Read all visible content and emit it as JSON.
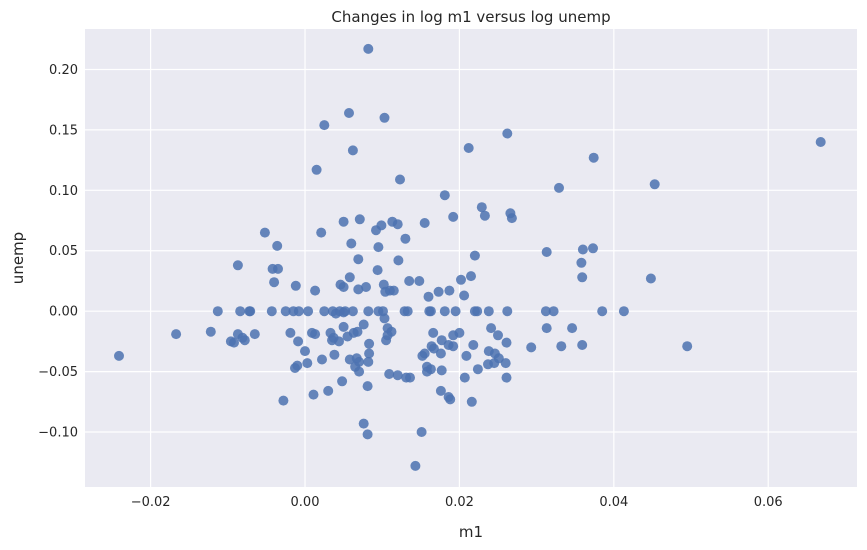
{
  "chart_data": {
    "type": "scatter",
    "title": "Changes in log m1 versus log unemp",
    "xlabel": "m1",
    "ylabel": "unemp",
    "xlim": [
      -0.0285,
      0.0715
    ],
    "ylim": [
      -0.1455,
      0.2335
    ],
    "grid": true,
    "background": "#eaeaf2",
    "point_color": "#4c72b0",
    "xticks": [
      -0.02,
      0.0,
      0.02,
      0.04,
      0.06
    ],
    "xtick_labels": [
      "−0.02",
      "0.00",
      "0.02",
      "0.04",
      "0.06"
    ],
    "yticks": [
      -0.1,
      -0.05,
      0.0,
      0.05,
      0.1,
      0.15,
      0.2
    ],
    "ytick_labels": [
      "−0.10",
      "−0.05",
      "0.00",
      "0.05",
      "0.10",
      "0.15",
      "0.20"
    ],
    "points": [
      [
        0.0082,
        0.217
      ],
      [
        0.0057,
        0.164
      ],
      [
        0.0103,
        0.16
      ],
      [
        0.0025,
        0.154
      ],
      [
        0.0262,
        0.147
      ],
      [
        0.0668,
        0.14
      ],
      [
        0.0212,
        0.135
      ],
      [
        0.0062,
        0.133
      ],
      [
        0.0374,
        0.127
      ],
      [
        0.0015,
        0.117
      ],
      [
        0.0123,
        0.109
      ],
      [
        0.0453,
        0.105
      ],
      [
        0.0329,
        0.102
      ],
      [
        0.0181,
        0.096
      ],
      [
        0.0229,
        0.086
      ],
      [
        0.0266,
        0.081
      ],
      [
        0.0233,
        0.079
      ],
      [
        0.0268,
        0.077
      ],
      [
        0.0192,
        0.078
      ],
      [
        0.0071,
        0.076
      ],
      [
        0.0113,
        0.074
      ],
      [
        0.005,
        0.074
      ],
      [
        0.0155,
        0.073
      ],
      [
        0.012,
        0.072
      ],
      [
        0.0099,
        0.071
      ],
      [
        0.0092,
        0.067
      ],
      [
        -0.0052,
        0.065
      ],
      [
        0.0021,
        0.065
      ],
      [
        0.013,
        0.06
      ],
      [
        0.006,
        0.056
      ],
      [
        -0.0036,
        0.054
      ],
      [
        0.0095,
        0.053
      ],
      [
        0.0373,
        0.052
      ],
      [
        0.036,
        0.051
      ],
      [
        0.0313,
        0.049
      ],
      [
        0.022,
        0.046
      ],
      [
        0.0069,
        0.043
      ],
      [
        0.0121,
        0.042
      ],
      [
        0.0358,
        0.04
      ],
      [
        -0.0087,
        0.038
      ],
      [
        -0.0042,
        0.035
      ],
      [
        -0.0035,
        0.035
      ],
      [
        0.0094,
        0.034
      ],
      [
        0.0215,
        0.029
      ],
      [
        0.0058,
        0.028
      ],
      [
        0.0359,
        0.028
      ],
      [
        0.0448,
        0.027
      ],
      [
        0.0135,
        0.025
      ],
      [
        0.0148,
        0.025
      ],
      [
        -0.004,
        0.024
      ],
      [
        0.0202,
        0.026
      ],
      [
        0.0046,
        0.022
      ],
      [
        0.0102,
        0.022
      ],
      [
        -0.0012,
        0.021
      ],
      [
        0.005,
        0.02
      ],
      [
        0.0079,
        0.02
      ],
      [
        0.0187,
        0.017
      ],
      [
        0.011,
        0.017
      ],
      [
        0.0104,
        0.016
      ],
      [
        0.0173,
        0.016
      ],
      [
        0.0069,
        0.018
      ],
      [
        0.0013,
        0.017
      ],
      [
        0.0115,
        0.017
      ],
      [
        0.0206,
        0.013
      ],
      [
        0.016,
        0.012
      ],
      [
        -0.0113,
        0.0
      ],
      [
        -0.0084,
        0.0
      ],
      [
        -0.0072,
        0.0
      ],
      [
        -0.0071,
        0.0
      ],
      [
        -0.0043,
        0.0
      ],
      [
        -0.0025,
        0.0
      ],
      [
        -0.0015,
        0.0
      ],
      [
        -0.0008,
        0.0
      ],
      [
        0.0004,
        0.0
      ],
      [
        0.0025,
        0.0
      ],
      [
        0.0036,
        0.0
      ],
      [
        0.0045,
        0.0
      ],
      [
        0.0052,
        0.0
      ],
      [
        0.0062,
        0.0
      ],
      [
        0.0082,
        0.0
      ],
      [
        0.0095,
        0.0
      ],
      [
        0.0101,
        0.0
      ],
      [
        0.0129,
        0.0
      ],
      [
        0.0133,
        0.0
      ],
      [
        0.0161,
        0.0
      ],
      [
        0.0163,
        0.0
      ],
      [
        0.0181,
        0.0
      ],
      [
        0.0195,
        0.0
      ],
      [
        0.022,
        0.0
      ],
      [
        0.0223,
        0.0
      ],
      [
        0.0238,
        0.0
      ],
      [
        0.0262,
        0.0
      ],
      [
        0.0312,
        0.0
      ],
      [
        0.0322,
        0.0
      ],
      [
        0.0385,
        0.0
      ],
      [
        0.0413,
        0.0
      ],
      [
        0.004,
        -0.002
      ],
      [
        0.005,
        -0.001
      ],
      [
        0.0103,
        -0.006
      ],
      [
        0.0076,
        -0.011
      ],
      [
        0.005,
        -0.013
      ],
      [
        0.0241,
        -0.014
      ],
      [
        0.0313,
        -0.014
      ],
      [
        0.0346,
        -0.014
      ],
      [
        0.0107,
        -0.014
      ],
      [
        -0.0167,
        -0.019
      ],
      [
        -0.0122,
        -0.017
      ],
      [
        -0.0019,
        -0.018
      ],
      [
        0.0009,
        -0.018
      ],
      [
        0.0013,
        -0.019
      ],
      [
        0.0033,
        -0.018
      ],
      [
        0.0063,
        -0.018
      ],
      [
        0.0068,
        -0.017
      ],
      [
        0.0112,
        -0.017
      ],
      [
        0.0166,
        -0.018
      ],
      [
        0.02,
        -0.018
      ],
      [
        -0.0087,
        -0.019
      ],
      [
        -0.0065,
        -0.019
      ],
      [
        -0.0081,
        -0.022
      ],
      [
        0.0037,
        -0.022
      ],
      [
        0.0055,
        -0.021
      ],
      [
        0.0107,
        -0.02
      ],
      [
        0.0192,
        -0.02
      ],
      [
        0.025,
        -0.02
      ],
      [
        -0.0096,
        -0.025
      ],
      [
        -0.0078,
        -0.024
      ],
      [
        -0.0092,
        -0.026
      ],
      [
        0.0035,
        -0.024
      ],
      [
        0.0044,
        -0.025
      ],
      [
        -0.0009,
        -0.025
      ],
      [
        0.0105,
        -0.024
      ],
      [
        0.0177,
        -0.024
      ],
      [
        0.0083,
        -0.027
      ],
      [
        0.0186,
        -0.028
      ],
      [
        0.0218,
        -0.028
      ],
      [
        0.0261,
        -0.026
      ],
      [
        0.0164,
        -0.029
      ],
      [
        0.0192,
        -0.029
      ],
      [
        0.0293,
        -0.03
      ],
      [
        0.0332,
        -0.029
      ],
      [
        0.0359,
        -0.028
      ],
      [
        0.0495,
        -0.029
      ],
      [
        0.0,
        -0.033
      ],
      [
        0.0167,
        -0.031
      ],
      [
        0.0083,
        -0.035
      ],
      [
        0.0038,
        -0.036
      ],
      [
        0.0155,
        -0.035
      ],
      [
        0.0176,
        -0.035
      ],
      [
        0.0238,
        -0.033
      ],
      [
        0.0246,
        -0.035
      ],
      [
        0.0152,
        -0.037
      ],
      [
        0.0209,
        -0.037
      ],
      [
        0.0251,
        -0.039
      ],
      [
        -0.0241,
        -0.037
      ],
      [
        0.0022,
        -0.04
      ],
      [
        0.0058,
        -0.04
      ],
      [
        0.0067,
        -0.039
      ],
      [
        0.007,
        -0.042
      ],
      [
        0.0082,
        -0.042
      ],
      [
        0.0003,
        -0.043
      ],
      [
        0.0245,
        -0.043
      ],
      [
        0.026,
        -0.043
      ],
      [
        0.0158,
        -0.046
      ],
      [
        0.0237,
        -0.044
      ],
      [
        -0.0013,
        -0.047
      ],
      [
        -0.001,
        -0.045
      ],
      [
        0.0065,
        -0.046
      ],
      [
        0.0163,
        -0.048
      ],
      [
        0.0177,
        -0.049
      ],
      [
        0.0224,
        -0.048
      ],
      [
        0.007,
        -0.05
      ],
      [
        0.0158,
        -0.05
      ],
      [
        0.012,
        -0.053
      ],
      [
        0.0109,
        -0.052
      ],
      [
        0.0131,
        -0.055
      ],
      [
        0.0136,
        -0.055
      ],
      [
        0.0207,
        -0.055
      ],
      [
        0.0261,
        -0.055
      ],
      [
        0.0048,
        -0.058
      ],
      [
        0.0081,
        -0.062
      ],
      [
        0.003,
        -0.066
      ],
      [
        0.0176,
        -0.066
      ],
      [
        0.0011,
        -0.069
      ],
      [
        0.0186,
        -0.071
      ],
      [
        0.0188,
        -0.073
      ],
      [
        -0.0028,
        -0.074
      ],
      [
        0.0216,
        -0.075
      ],
      [
        0.0076,
        -0.093
      ],
      [
        0.0151,
        -0.1
      ],
      [
        0.0081,
        -0.102
      ],
      [
        0.0143,
        -0.128
      ]
    ]
  }
}
